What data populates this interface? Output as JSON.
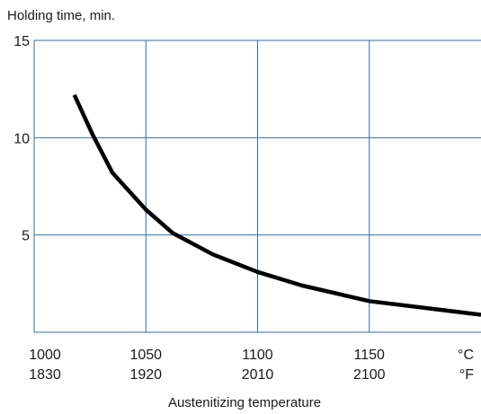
{
  "chart_data": {
    "type": "line",
    "ylabel": "Holding time, min.",
    "xlabel": "Austenitizing temperature",
    "xlim": [
      1000,
      1200
    ],
    "ylim": [
      0,
      15
    ],
    "grid": true,
    "x_ticks_celsius": [
      "1000",
      "1050",
      "1100",
      "1150"
    ],
    "x_ticks_fahrenheit": [
      "1830",
      "1920",
      "2010",
      "2100"
    ],
    "x_unit_celsius": "°C",
    "x_unit_fahrenheit": "°F",
    "y_ticks": [
      "15",
      "10",
      "5"
    ],
    "y_tick_values": [
      15,
      10,
      5
    ],
    "series": [
      {
        "x": [
          1018,
          1026,
          1035,
          1050,
          1062,
          1080,
          1100,
          1120,
          1150,
          1200
        ],
        "y": [
          12.2,
          10.2,
          8.2,
          6.3,
          5.1,
          4.0,
          3.1,
          2.4,
          1.6,
          0.9
        ]
      }
    ],
    "color": "#000000",
    "grid_color": "#2e6db4"
  }
}
